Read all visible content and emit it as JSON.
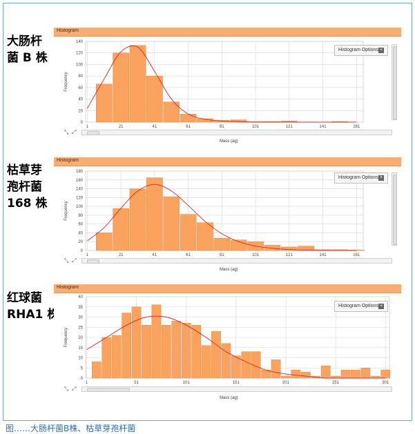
{
  "page": {
    "caption_partial": "图……大肠杆菌B株、枯草芽孢杆菌"
  },
  "panels": [
    {
      "label_lines": [
        "大肠杆",
        "菌 B 株"
      ]
    },
    {
      "label_lines": [
        "枯草芽",
        "孢杆菌",
        "168 株"
      ]
    },
    {
      "label_lines": [
        "红球菌",
        "RHA1 株"
      ]
    }
  ],
  "ui": {
    "panel_title": "Histogram",
    "options_label": "Histogram Options",
    "options_button": "+",
    "ylabel": "Frequency",
    "xlabel": "Mass (ag)",
    "zoom_icons": "⤡ ⤢"
  },
  "chart_data": [
    {
      "type": "bar",
      "title": "Histogram",
      "xlabel": "Mass (ag)",
      "ylabel": "Frequency",
      "ylim": [
        0,
        140
      ],
      "yticks": [
        0,
        20,
        40,
        60,
        80,
        100,
        120,
        140
      ],
      "xticks": [
        1,
        21,
        41,
        61,
        81,
        101,
        121,
        141,
        161
      ],
      "xrange": [
        0,
        165
      ],
      "bin_width": 10,
      "bins_start": [
        6,
        16,
        26,
        36,
        46,
        56,
        66,
        76,
        86,
        96,
        106,
        116,
        126,
        136,
        146,
        156
      ],
      "values": [
        66,
        120,
        133,
        80,
        35,
        14,
        6,
        3,
        4,
        1,
        1,
        2,
        0,
        0,
        1,
        0
      ],
      "fit_x": [
        1,
        11,
        21,
        31,
        41,
        51,
        61,
        71,
        81,
        91,
        101,
        111,
        121,
        131,
        141,
        151,
        161
      ],
      "fit_y": [
        24,
        75,
        122,
        130,
        88,
        40,
        14,
        5,
        2,
        1,
        0,
        0,
        0,
        0,
        0,
        0,
        0
      ],
      "grid": true,
      "colors": {
        "bar": "#f9a35e",
        "bar_stroke": "#e88a3d",
        "fit": "#e4231f",
        "grid": "#d4d4d4",
        "panel_header": "#f7ad73"
      }
    },
    {
      "type": "bar",
      "title": "Histogram",
      "xlabel": "Mass (ag)",
      "ylabel": "Frequency",
      "ylim": [
        0,
        180
      ],
      "yticks": [
        0,
        20,
        40,
        60,
        80,
        100,
        120,
        140,
        160,
        180
      ],
      "xticks": [
        1,
        21,
        41,
        61,
        81,
        101,
        121,
        141,
        161
      ],
      "xrange": [
        0,
        165
      ],
      "bin_width": 10,
      "bins_start": [
        6,
        16,
        26,
        36,
        46,
        56,
        66,
        76,
        86,
        96,
        106,
        116,
        126,
        136,
        146,
        156
      ],
      "values": [
        40,
        95,
        140,
        165,
        122,
        82,
        63,
        28,
        24,
        20,
        12,
        8,
        10,
        2,
        2,
        1
      ],
      "fit_x": [
        1,
        11,
        21,
        31,
        41,
        51,
        61,
        71,
        81,
        91,
        101,
        111,
        121,
        131,
        141,
        151,
        161
      ],
      "fit_y": [
        22,
        52,
        96,
        135,
        150,
        135,
        102,
        66,
        38,
        20,
        10,
        5,
        2,
        1,
        0,
        0,
        0
      ],
      "grid": true,
      "colors": {
        "bar": "#f9a35e",
        "bar_stroke": "#e88a3d",
        "fit": "#e4231f",
        "grid": "#d4d4d4",
        "panel_header": "#f7ad73"
      }
    },
    {
      "type": "bar",
      "title": "Histogram",
      "xlabel": "Mass (ag)",
      "ylabel": "Frequency",
      "ylim": [
        0,
        40
      ],
      "yticks": [
        0,
        5,
        10,
        15,
        20,
        25,
        30,
        35,
        40
      ],
      "xticks": [
        1,
        51,
        101,
        151,
        201,
        251,
        301
      ],
      "xrange": [
        0,
        305
      ],
      "bin_width": 10,
      "bins_start": [
        6,
        16,
        26,
        36,
        46,
        56,
        66,
        76,
        86,
        96,
        106,
        116,
        126,
        136,
        146,
        156,
        166,
        176,
        186,
        196,
        206,
        216,
        226,
        236,
        246,
        256,
        266,
        276,
        286,
        296
      ],
      "values": [
        8,
        20,
        21,
        32,
        35,
        26,
        36,
        26,
        28,
        27,
        26,
        16,
        23,
        17,
        11,
        13,
        13,
        4,
        9,
        1,
        4,
        3,
        1,
        6,
        1,
        4,
        4,
        5,
        1,
        4
      ],
      "fit_x": [
        1,
        21,
        41,
        61,
        81,
        101,
        121,
        141,
        161,
        181,
        201,
        221,
        241,
        261,
        281,
        301
      ],
      "fit_y": [
        14,
        20,
        26,
        30,
        30,
        26,
        20,
        13,
        8,
        4,
        2,
        1,
        0,
        0,
        0,
        0
      ],
      "grid": true,
      "colors": {
        "bar": "#f9a35e",
        "bar_stroke": "#e88a3d",
        "fit": "#e4231f",
        "grid": "#d4d4d4",
        "panel_header": "#f7ad73"
      }
    }
  ]
}
